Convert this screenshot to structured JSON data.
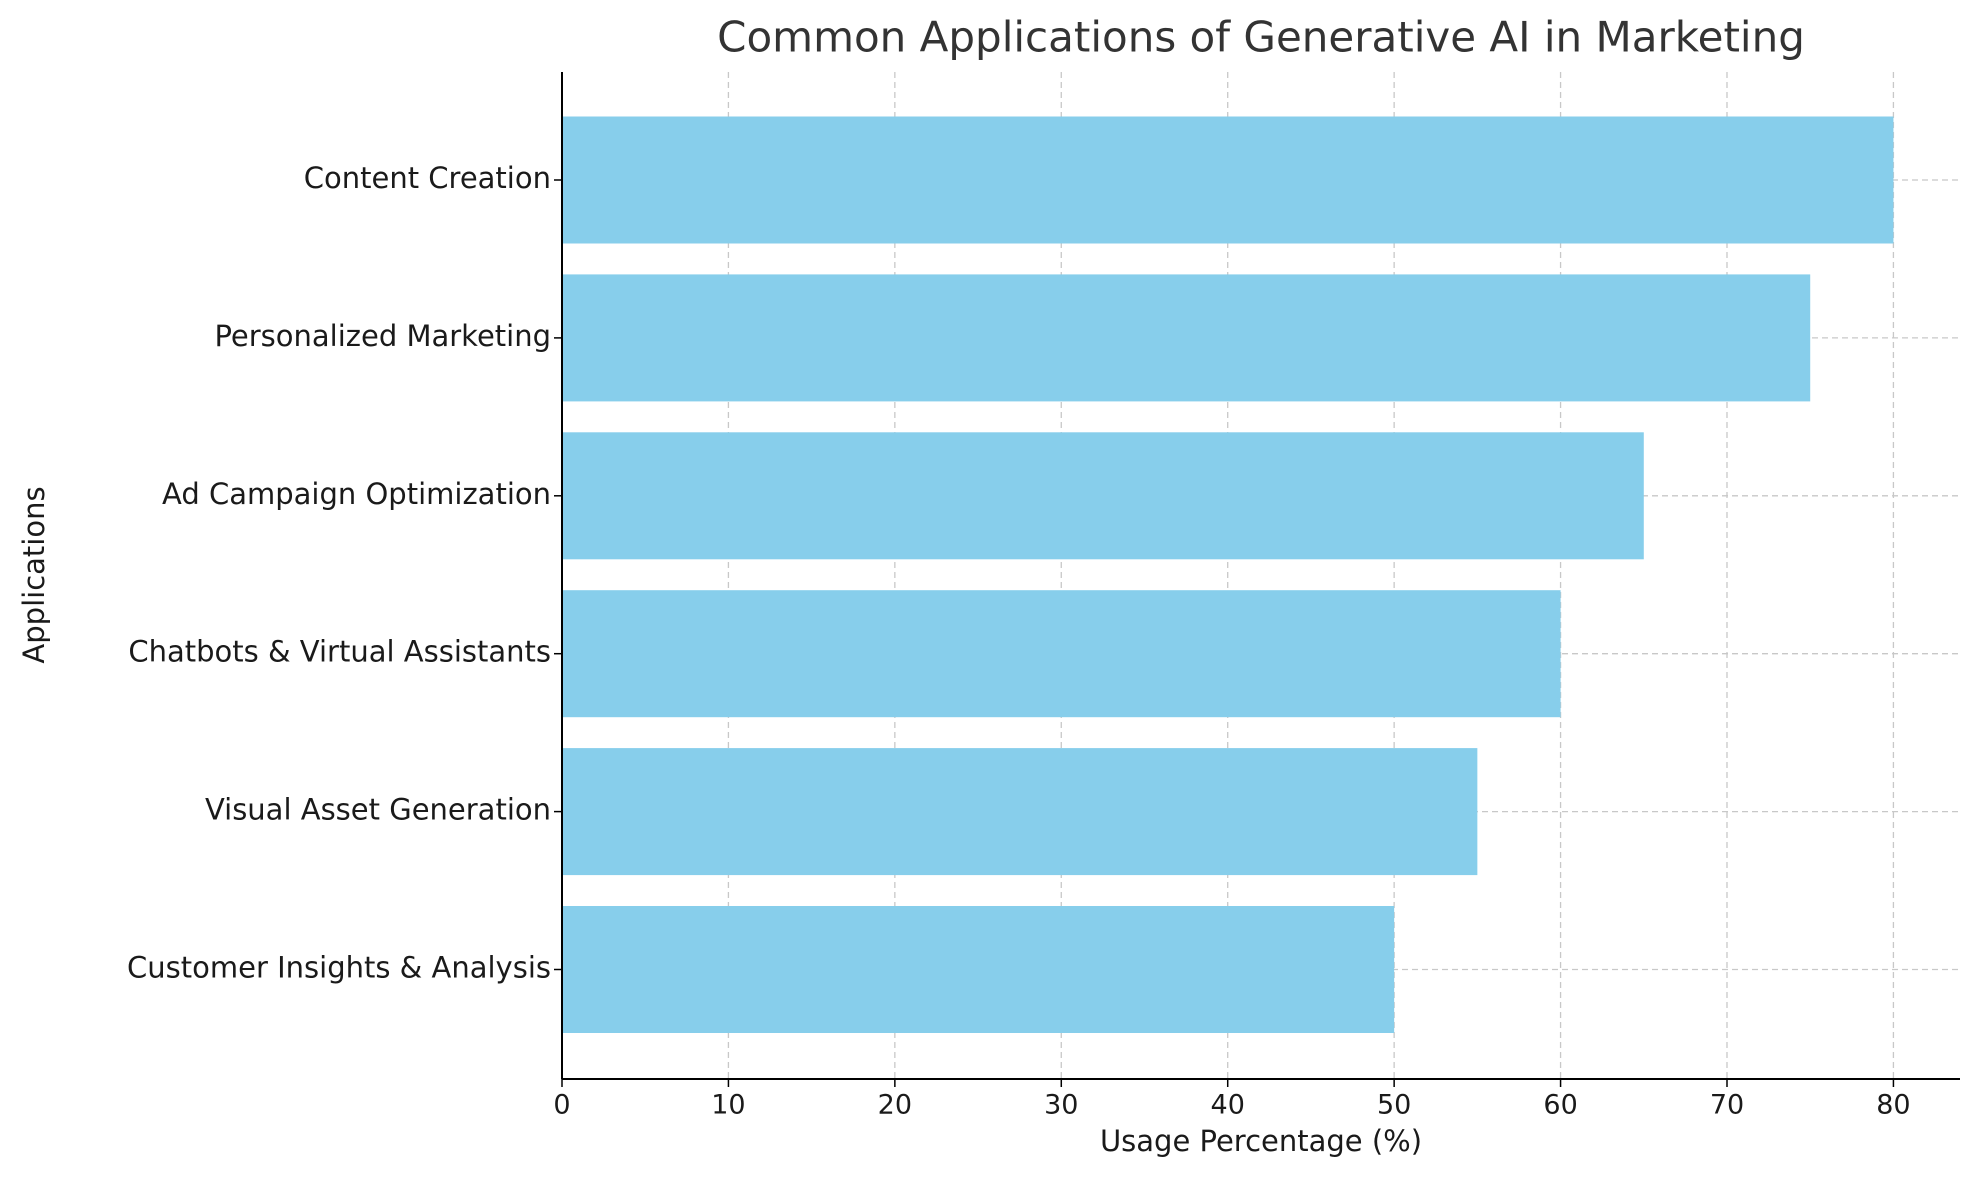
{
  "chart_data": {
    "type": "barh",
    "title": "Common Applications of Generative AI in Marketing",
    "xlabel": "Usage Percentage (%)",
    "ylabel": "Applications",
    "categories": [
      "Content Creation",
      "Personalized Marketing",
      "Ad Campaign Optimization",
      "Chatbots & Virtual Assistants",
      "Visual Asset Generation",
      "Customer Insights & Analysis"
    ],
    "values": [
      80,
      75,
      65,
      60,
      55,
      50
    ],
    "color": "#87ceeb",
    "xlim": [
      0,
      84
    ],
    "xticks": [
      0,
      10,
      20,
      30,
      40,
      50,
      60,
      70,
      80
    ],
    "grid": true
  }
}
